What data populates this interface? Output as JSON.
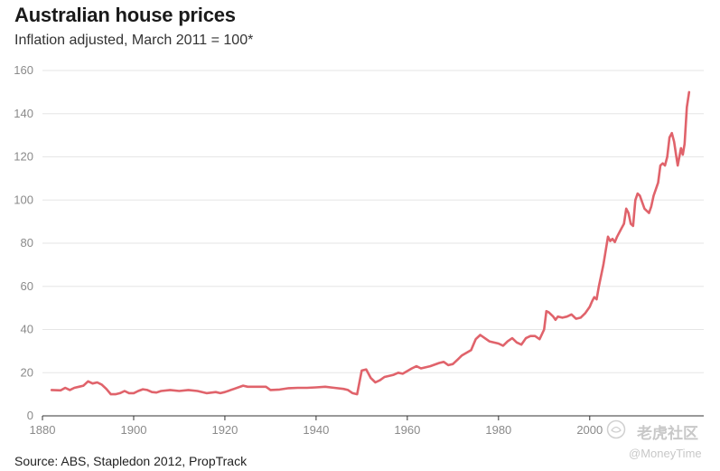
{
  "chart_data": {
    "type": "line",
    "title": "Australian house prices",
    "subtitle": "Inflation adjusted, March 2011 = 100*",
    "xlabel": "",
    "ylabel": "",
    "xlim": [
      1880,
      2025
    ],
    "ylim": [
      0,
      160
    ],
    "xticks": [
      1880,
      1900,
      1920,
      1940,
      1960,
      1980,
      2000
    ],
    "yticks": [
      0,
      20,
      40,
      60,
      80,
      100,
      120,
      140,
      160
    ],
    "grid": true,
    "series": [
      {
        "name": "Australian house prices",
        "color": "#e0636b",
        "points": [
          [
            1882,
            12
          ],
          [
            1884,
            11.8
          ],
          [
            1885,
            13
          ],
          [
            1886,
            12
          ],
          [
            1887,
            13
          ],
          [
            1888,
            13.5
          ],
          [
            1889,
            14
          ],
          [
            1890,
            16
          ],
          [
            1891,
            15
          ],
          [
            1892,
            15.5
          ],
          [
            1893,
            14.5
          ],
          [
            1894,
            12.5
          ],
          [
            1895,
            10
          ],
          [
            1896,
            10
          ],
          [
            1897,
            10.5
          ],
          [
            1898,
            11.5
          ],
          [
            1899,
            10.5
          ],
          [
            1900,
            10.5
          ],
          [
            1901,
            11.5
          ],
          [
            1902,
            12.3
          ],
          [
            1903,
            12
          ],
          [
            1904,
            11
          ],
          [
            1905,
            10.8
          ],
          [
            1906,
            11.5
          ],
          [
            1908,
            12
          ],
          [
            1910,
            11.5
          ],
          [
            1912,
            12
          ],
          [
            1914,
            11.5
          ],
          [
            1916,
            10.5
          ],
          [
            1918,
            11
          ],
          [
            1919,
            10.5
          ],
          [
            1920,
            11
          ],
          [
            1922,
            12.5
          ],
          [
            1924,
            14
          ],
          [
            1925,
            13.5
          ],
          [
            1927,
            13.5
          ],
          [
            1929,
            13.5
          ],
          [
            1930,
            12
          ],
          [
            1932,
            12.2
          ],
          [
            1934,
            12.8
          ],
          [
            1936,
            13
          ],
          [
            1938,
            13
          ],
          [
            1940,
            13.2
          ],
          [
            1942,
            13.5
          ],
          [
            1944,
            13
          ],
          [
            1946,
            12.5
          ],
          [
            1947,
            12
          ],
          [
            1948,
            10.5
          ],
          [
            1949,
            10
          ],
          [
            1950,
            21
          ],
          [
            1951,
            21.5
          ],
          [
            1952,
            17.5
          ],
          [
            1953,
            15.5
          ],
          [
            1954,
            16.5
          ],
          [
            1955,
            18
          ],
          [
            1957,
            19
          ],
          [
            1958,
            20
          ],
          [
            1959,
            19.5
          ],
          [
            1961,
            22
          ],
          [
            1962,
            23
          ],
          [
            1963,
            22
          ],
          [
            1965,
            23
          ],
          [
            1967,
            24.5
          ],
          [
            1968,
            25
          ],
          [
            1969,
            23.5
          ],
          [
            1970,
            24
          ],
          [
            1971,
            26
          ],
          [
            1972,
            28
          ],
          [
            1974,
            30.5
          ],
          [
            1975,
            35.5
          ],
          [
            1976,
            37.5
          ],
          [
            1977,
            36
          ],
          [
            1978,
            34.5
          ],
          [
            1980,
            33.5
          ],
          [
            1981,
            32.5
          ],
          [
            1982,
            34.5
          ],
          [
            1983,
            36
          ],
          [
            1984,
            34
          ],
          [
            1985,
            33
          ],
          [
            1986,
            36
          ],
          [
            1987,
            37
          ],
          [
            1988,
            37
          ],
          [
            1989,
            35.5
          ],
          [
            1990,
            40
          ],
          [
            1990.5,
            48.5
          ],
          [
            1991,
            48
          ],
          [
            1992,
            46
          ],
          [
            1992.5,
            44.5
          ],
          [
            1993,
            46
          ],
          [
            1994,
            45.5
          ],
          [
            1995,
            46
          ],
          [
            1996,
            47
          ],
          [
            1997,
            45
          ],
          [
            1998,
            45.5
          ],
          [
            1999,
            47.5
          ],
          [
            2000,
            50.5
          ],
          [
            2000.5,
            53
          ],
          [
            2001,
            55
          ],
          [
            2001.5,
            54
          ],
          [
            2002,
            60
          ],
          [
            2003,
            70
          ],
          [
            2004,
            83
          ],
          [
            2004.5,
            81
          ],
          [
            2005,
            82
          ],
          [
            2005.5,
            80.5
          ],
          [
            2006,
            83
          ],
          [
            2007,
            87
          ],
          [
            2007.5,
            89
          ],
          [
            2008,
            96
          ],
          [
            2008.5,
            94
          ],
          [
            2009,
            89
          ],
          [
            2009.5,
            88
          ],
          [
            2010,
            100
          ],
          [
            2010.5,
            103
          ],
          [
            2011,
            102
          ],
          [
            2012,
            96
          ],
          [
            2012.5,
            95
          ],
          [
            2013,
            94
          ],
          [
            2013.5,
            97
          ],
          [
            2014,
            102
          ],
          [
            2014.5,
            105
          ],
          [
            2015,
            108
          ],
          [
            2015.5,
            116
          ],
          [
            2016,
            117
          ],
          [
            2016.5,
            116
          ],
          [
            2017,
            120
          ],
          [
            2017.5,
            129
          ],
          [
            2018,
            131
          ],
          [
            2018.5,
            127
          ],
          [
            2019,
            120
          ],
          [
            2019.3,
            116
          ],
          [
            2020,
            124
          ],
          [
            2020.4,
            121
          ],
          [
            2020.8,
            126
          ],
          [
            2021.3,
            143
          ],
          [
            2021.8,
            150
          ]
        ]
      }
    ]
  },
  "source": "Source: ABS, Stapledon 2012, PropTrack",
  "watermark": {
    "name": "老虎社区",
    "handle": "@MoneyTime"
  }
}
